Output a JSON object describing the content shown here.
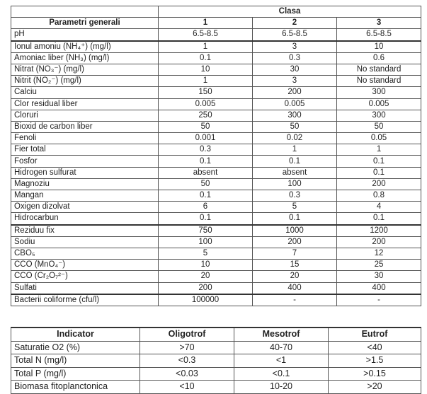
{
  "table1": {
    "class_header": "Clasa",
    "param_header": "Parametri generali",
    "class_labels": [
      "1",
      "2",
      "3"
    ],
    "rows": [
      {
        "name": "pH",
        "values": [
          "6.5-8.5",
          "6.5-8.5",
          "6.5-8.5"
        ]
      },
      {
        "name": "Ionul amoniu (NH₄⁺) (mg/l)",
        "values": [
          "1",
          "3",
          "10"
        ]
      },
      {
        "name": "Amoniac liber (NH₃) (mg/l)",
        "values": [
          "0.1",
          "0.3",
          "0.6"
        ]
      },
      {
        "name": "Nitrat (NO₃⁻) (mg/l)",
        "values": [
          "10",
          "30",
          "No standard"
        ]
      },
      {
        "name": "Nitrit (NO₂⁻) (mg/l)",
        "values": [
          "1",
          "3",
          "No standard"
        ]
      },
      {
        "name": "Calciu",
        "values": [
          "150",
          "200",
          "300"
        ]
      },
      {
        "name": "Clor residual liber",
        "values": [
          "0.005",
          "0.005",
          "0.005"
        ]
      },
      {
        "name": "Cloruri",
        "values": [
          "250",
          "300",
          "300"
        ]
      },
      {
        "name": "Bioxid de carbon liber",
        "values": [
          "50",
          "50",
          "50"
        ]
      },
      {
        "name": "Fenoli",
        "values": [
          "0.001",
          "0.02",
          "0.05"
        ]
      },
      {
        "name": "Fier total",
        "values": [
          "0.3",
          "1",
          "1"
        ]
      },
      {
        "name": "Fosfor",
        "values": [
          "0.1",
          "0.1",
          "0.1"
        ]
      },
      {
        "name": "Hidrogen sulfurat",
        "values": [
          "absent",
          "absent",
          "0.1"
        ]
      },
      {
        "name": "Magnoziu",
        "values": [
          "50",
          "100",
          "200"
        ]
      },
      {
        "name": "Mangan",
        "values": [
          "0.1",
          "0.3",
          "0.8"
        ]
      },
      {
        "name": "Oxigen dizolvat",
        "values": [
          "6",
          "5",
          "4"
        ]
      },
      {
        "name": "Hidrocarbun",
        "values": [
          "0.1",
          "0.1",
          "0.1"
        ]
      },
      {
        "name": "Reziduu fix",
        "values": [
          "750",
          "1000",
          "1200"
        ]
      },
      {
        "name": "Sodiu",
        "values": [
          "100",
          "200",
          "200"
        ]
      },
      {
        "name": "CBO₅",
        "values": [
          "5",
          "7",
          "12"
        ]
      },
      {
        "name": "CCO (MnO₄⁻)",
        "values": [
          "10",
          "15",
          "25"
        ]
      },
      {
        "name": "CCO (Cr₂O₇²⁻)",
        "values": [
          "20",
          "20",
          "30"
        ]
      },
      {
        "name": "Sulfati",
        "values": [
          "200",
          "400",
          "400"
        ]
      },
      {
        "name": "Bacterii coliforme (cfu/l)",
        "values": [
          "100000",
          "-",
          "-"
        ]
      }
    ]
  },
  "table2": {
    "headers": [
      "Indicator",
      "Oligotrof",
      "Mesotrof",
      "Eutrof"
    ],
    "rows": [
      {
        "name": "Saturatie O2 (%)",
        "values": [
          ">70",
          "40-70",
          "<40"
        ]
      },
      {
        "name": "Total N (mg/l)",
        "values": [
          "<0.3",
          "<1",
          ">1.5"
        ]
      },
      {
        "name": "Total P (mg/l)",
        "values": [
          "<0.03",
          "<0.1",
          ">0.15"
        ]
      },
      {
        "name": "Biomasa fitoplanctonica",
        "values": [
          "<10",
          "10-20",
          ">20"
        ]
      }
    ]
  }
}
